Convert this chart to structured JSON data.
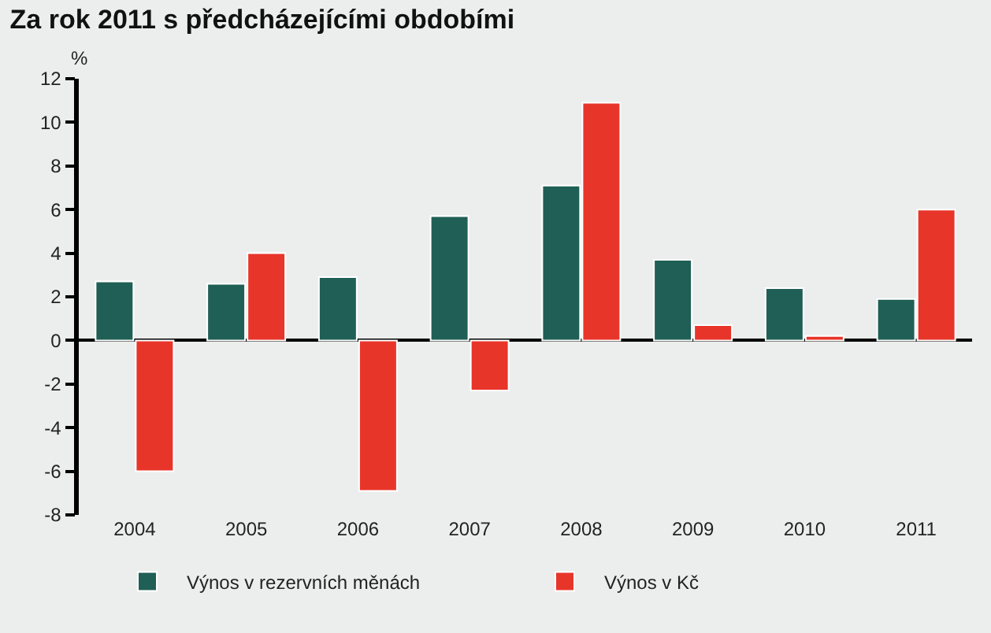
{
  "chart_data": {
    "type": "bar",
    "title": "Za rok 2011 s předcházejícími obdobími",
    "ylabel": "%",
    "categories": [
      "2004",
      "2005",
      "2006",
      "2007",
      "2008",
      "2009",
      "2010",
      "2011"
    ],
    "series": [
      {
        "name": "Výnos v rezervních měnách",
        "color": "#1f5f55",
        "values": [
          2.7,
          2.6,
          2.9,
          5.7,
          7.1,
          3.7,
          2.4,
          1.9
        ]
      },
      {
        "name": "Výnos v Kč",
        "color": "#e8352a",
        "values": [
          -6.0,
          4.0,
          -6.9,
          -2.3,
          10.9,
          0.7,
          0.2,
          6.0
        ]
      }
    ],
    "ylim": [
      -8,
      12
    ],
    "yticks": [
      -8,
      -6,
      -4,
      -2,
      0,
      2,
      4,
      6,
      8,
      10,
      12
    ],
    "legend": "bottom"
  }
}
